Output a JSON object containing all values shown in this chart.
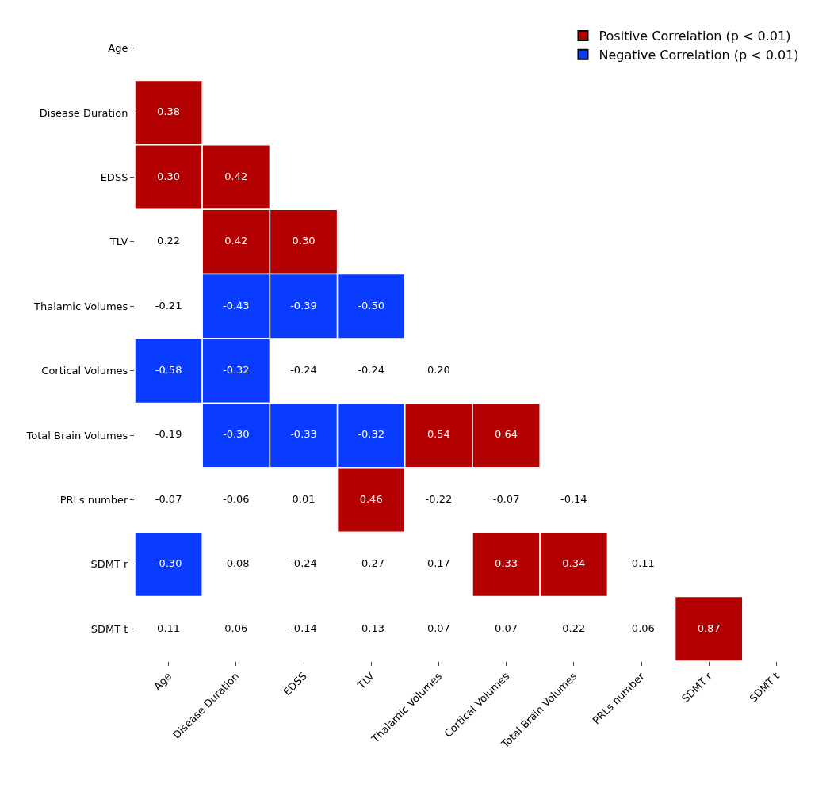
{
  "chart_data": {
    "type": "heatmap",
    "categories": [
      "Age",
      "Disease Duration",
      "EDSS",
      "TLV",
      "Thalamic Volumes",
      "Cortical Volumes",
      "Total Brain Volumes",
      "PRLs number",
      "SDMT r",
      "SDMT t"
    ],
    "y_categories": [
      "Age",
      "Disease Duration",
      "EDSS",
      "TLV",
      "Thalamic Volumes",
      "Cortical Volumes",
      "Total Brain Volumes",
      "PRLs number",
      "SDMT r",
      "SDMT t"
    ],
    "cells": [
      [
        null,
        null,
        null,
        null,
        null,
        null,
        null,
        null,
        null,
        null
      ],
      [
        0.38,
        null,
        null,
        null,
        null,
        null,
        null,
        null,
        null,
        null
      ],
      [
        0.3,
        0.42,
        null,
        null,
        null,
        null,
        null,
        null,
        null,
        null
      ],
      [
        0.22,
        0.42,
        0.3,
        null,
        null,
        null,
        null,
        null,
        null,
        null
      ],
      [
        -0.21,
        -0.43,
        -0.39,
        -0.5,
        null,
        null,
        null,
        null,
        null,
        null
      ],
      [
        -0.58,
        -0.32,
        -0.24,
        -0.24,
        0.2,
        null,
        null,
        null,
        null,
        null
      ],
      [
        -0.19,
        -0.3,
        -0.33,
        -0.32,
        0.54,
        0.64,
        null,
        null,
        null,
        null
      ],
      [
        -0.07,
        -0.06,
        0.01,
        0.46,
        -0.22,
        -0.07,
        -0.14,
        null,
        null,
        null
      ],
      [
        -0.3,
        -0.08,
        -0.24,
        -0.27,
        0.17,
        0.33,
        0.34,
        -0.11,
        null,
        null
      ],
      [
        0.11,
        0.06,
        -0.14,
        -0.13,
        0.07,
        0.07,
        0.22,
        -0.06,
        0.87,
        null
      ]
    ],
    "cell_labels": [
      [
        null,
        null,
        null,
        null,
        null,
        null,
        null,
        null,
        null,
        null
      ],
      [
        "0.38",
        null,
        null,
        null,
        null,
        null,
        null,
        null,
        null,
        null
      ],
      [
        "0.30",
        "0.42",
        null,
        null,
        null,
        null,
        null,
        null,
        null,
        null
      ],
      [
        "0.22",
        "0.42",
        "0.30",
        null,
        null,
        null,
        null,
        null,
        null,
        null
      ],
      [
        "-0.21",
        "-0.43",
        "-0.39",
        "-0.50",
        null,
        null,
        null,
        null,
        null,
        null
      ],
      [
        "-0.58",
        "-0.32",
        "-0.24",
        "-0.24",
        "0.20",
        null,
        null,
        null,
        null,
        null
      ],
      [
        "-0.19",
        "-0.30",
        "-0.33",
        "-0.32",
        "0.54",
        "0.64",
        null,
        null,
        null,
        null
      ],
      [
        "-0.07",
        "-0.06",
        "0.01",
        "0.46",
        "-0.22",
        "-0.07",
        "-0.14",
        null,
        null,
        null
      ],
      [
        "-0.30",
        "-0.08",
        "-0.24",
        "-0.27",
        "0.17",
        "0.33",
        "0.34",
        "-0.11",
        null,
        null
      ],
      [
        "0.11",
        "0.06",
        "-0.14",
        "-0.13",
        "0.07",
        "0.07",
        "0.22",
        "-0.06",
        "0.87",
        null
      ]
    ],
    "colors": [
      [
        null,
        null,
        null,
        null,
        null,
        null,
        null,
        null,
        null,
        null
      ],
      [
        "#b30000",
        null,
        null,
        null,
        null,
        null,
        null,
        null,
        null,
        null
      ],
      [
        "#b30000",
        "#b30000",
        null,
        null,
        null,
        null,
        null,
        null,
        null,
        null
      ],
      [
        null,
        "#b30000",
        "#b30000",
        null,
        null,
        null,
        null,
        null,
        null,
        null
      ],
      [
        null,
        "#0a3cff",
        "#0a3cff",
        "#0a3cff",
        null,
        null,
        null,
        null,
        null,
        null
      ],
      [
        "#0a3cff",
        "#0a3cff",
        null,
        null,
        null,
        null,
        null,
        null,
        null,
        null
      ],
      [
        null,
        "#0a3cff",
        "#0a3cff",
        "#0a3cff",
        "#b30000",
        "#b30000",
        null,
        null,
        null,
        null
      ],
      [
        null,
        null,
        null,
        "#b30000",
        null,
        null,
        null,
        null,
        null,
        null
      ],
      [
        "#0a3cff",
        null,
        null,
        null,
        null,
        "#b30000",
        "#b30000",
        null,
        null,
        null
      ],
      [
        null,
        null,
        null,
        null,
        null,
        null,
        null,
        null,
        "#b30000",
        null
      ]
    ],
    "series": [
      {
        "name": "Positive Correlation (p < 0.01)",
        "color": "#b30000",
        "values": [
          null,
          null,
          null,
          null,
          null,
          null,
          null,
          null,
          null,
          null
        ]
      },
      {
        "name": "Negative Correlation (p < 0.01)",
        "color": "#0a3cff",
        "values": [
          null,
          null,
          null,
          null,
          null,
          null,
          null,
          null,
          null,
          null
        ]
      }
    ],
    "data_labels": true,
    "legend": "top right",
    "grid": false
  }
}
